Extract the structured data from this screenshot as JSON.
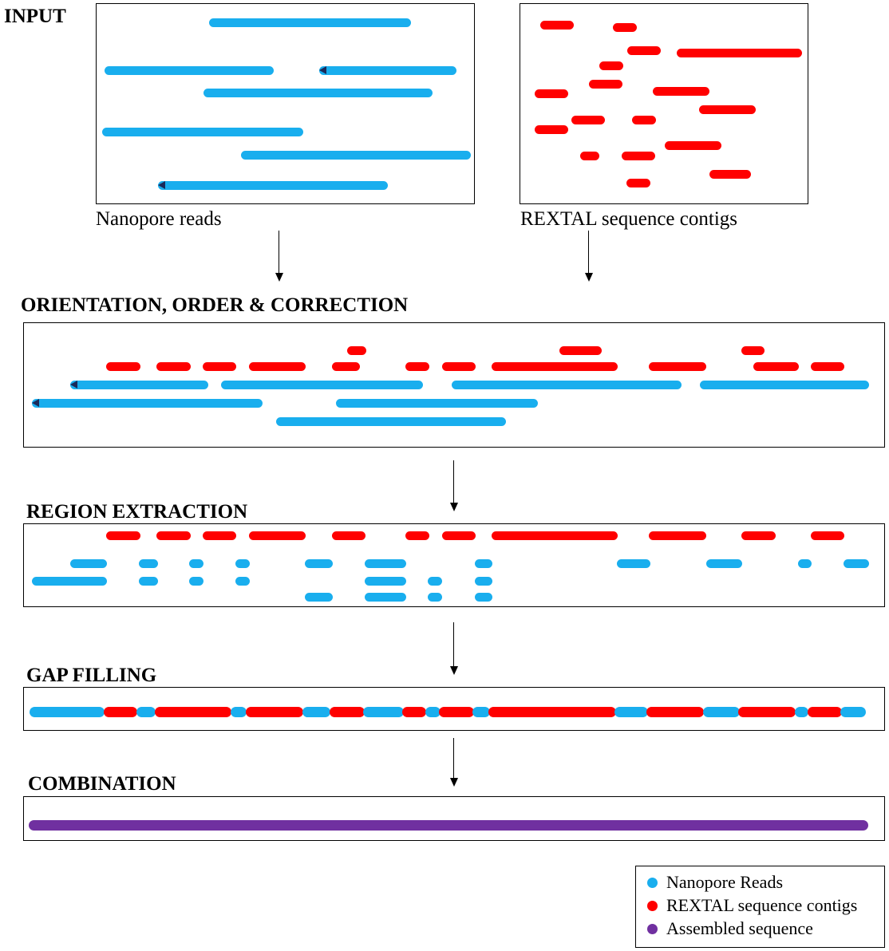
{
  "colors": {
    "nanopore": "#19aeee",
    "rextal": "#ff0000",
    "assembled": "#7030a0",
    "reverse_marker": "#1a2a5a"
  },
  "headings": {
    "input": "INPUT",
    "orientation": "ORIENTATION, ORDER & CORRECTION",
    "region_extraction": "REGION EXTRACTION",
    "gap_filling": "GAP FILLING",
    "combination": "COMBINATION"
  },
  "captions": {
    "nanopore_reads": "Nanopore reads",
    "rextal_contigs": "REXTAL sequence contigs"
  },
  "legend": {
    "items": [
      {
        "label": "Nanopore Reads",
        "color_key": "nanopore"
      },
      {
        "label": "REXTAL sequence contigs",
        "color_key": "rextal"
      },
      {
        "label": "Assembled sequence",
        "color_key": "assembled"
      }
    ]
  }
}
